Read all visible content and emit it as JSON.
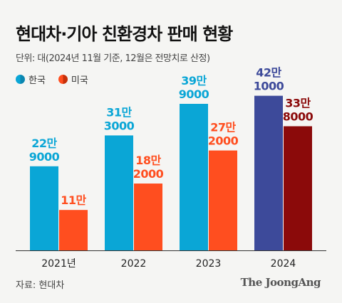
{
  "header": {
    "title": "현대차·기아 친환경차 판매 현황",
    "unit_note": "단위: 대(2024년 11월 기준, 12월은 전망치로 산정)"
  },
  "footer": {
    "source": "자료: 현대차",
    "logo_text": "The JoongAng"
  },
  "colors": {
    "korea": "#0aa6d6",
    "usa": "#ff4e1f",
    "korea_2024": "#3d4a9a",
    "usa_2024": "#8b0a0a",
    "text_korea": "#0aa6d6",
    "text_usa": "#ff4e1f",
    "text_korea_2024": "#3d4a9a",
    "text_usa_2024": "#8b0a0a"
  },
  "chart_data": {
    "type": "bar",
    "categories": [
      "2021년",
      "2022",
      "2023",
      "2024"
    ],
    "series": [
      {
        "name": "한국",
        "values": [
          229000,
          313000,
          399000,
          421000
        ],
        "labels": [
          [
            "22만",
            "9000"
          ],
          [
            "31만",
            "3000"
          ],
          [
            "39만",
            "9000"
          ],
          [
            "42만",
            "1000"
          ]
        ]
      },
      {
        "name": "미국",
        "values": [
          110000,
          182000,
          272000,
          338000
        ],
        "labels": [
          [
            "11만"
          ],
          [
            "18만",
            "2000"
          ],
          [
            "27만",
            "2000"
          ],
          [
            "33만",
            "8000"
          ]
        ]
      }
    ],
    "ylim": [
      0,
      430000
    ],
    "legend_position": "top-left",
    "grid": false
  }
}
